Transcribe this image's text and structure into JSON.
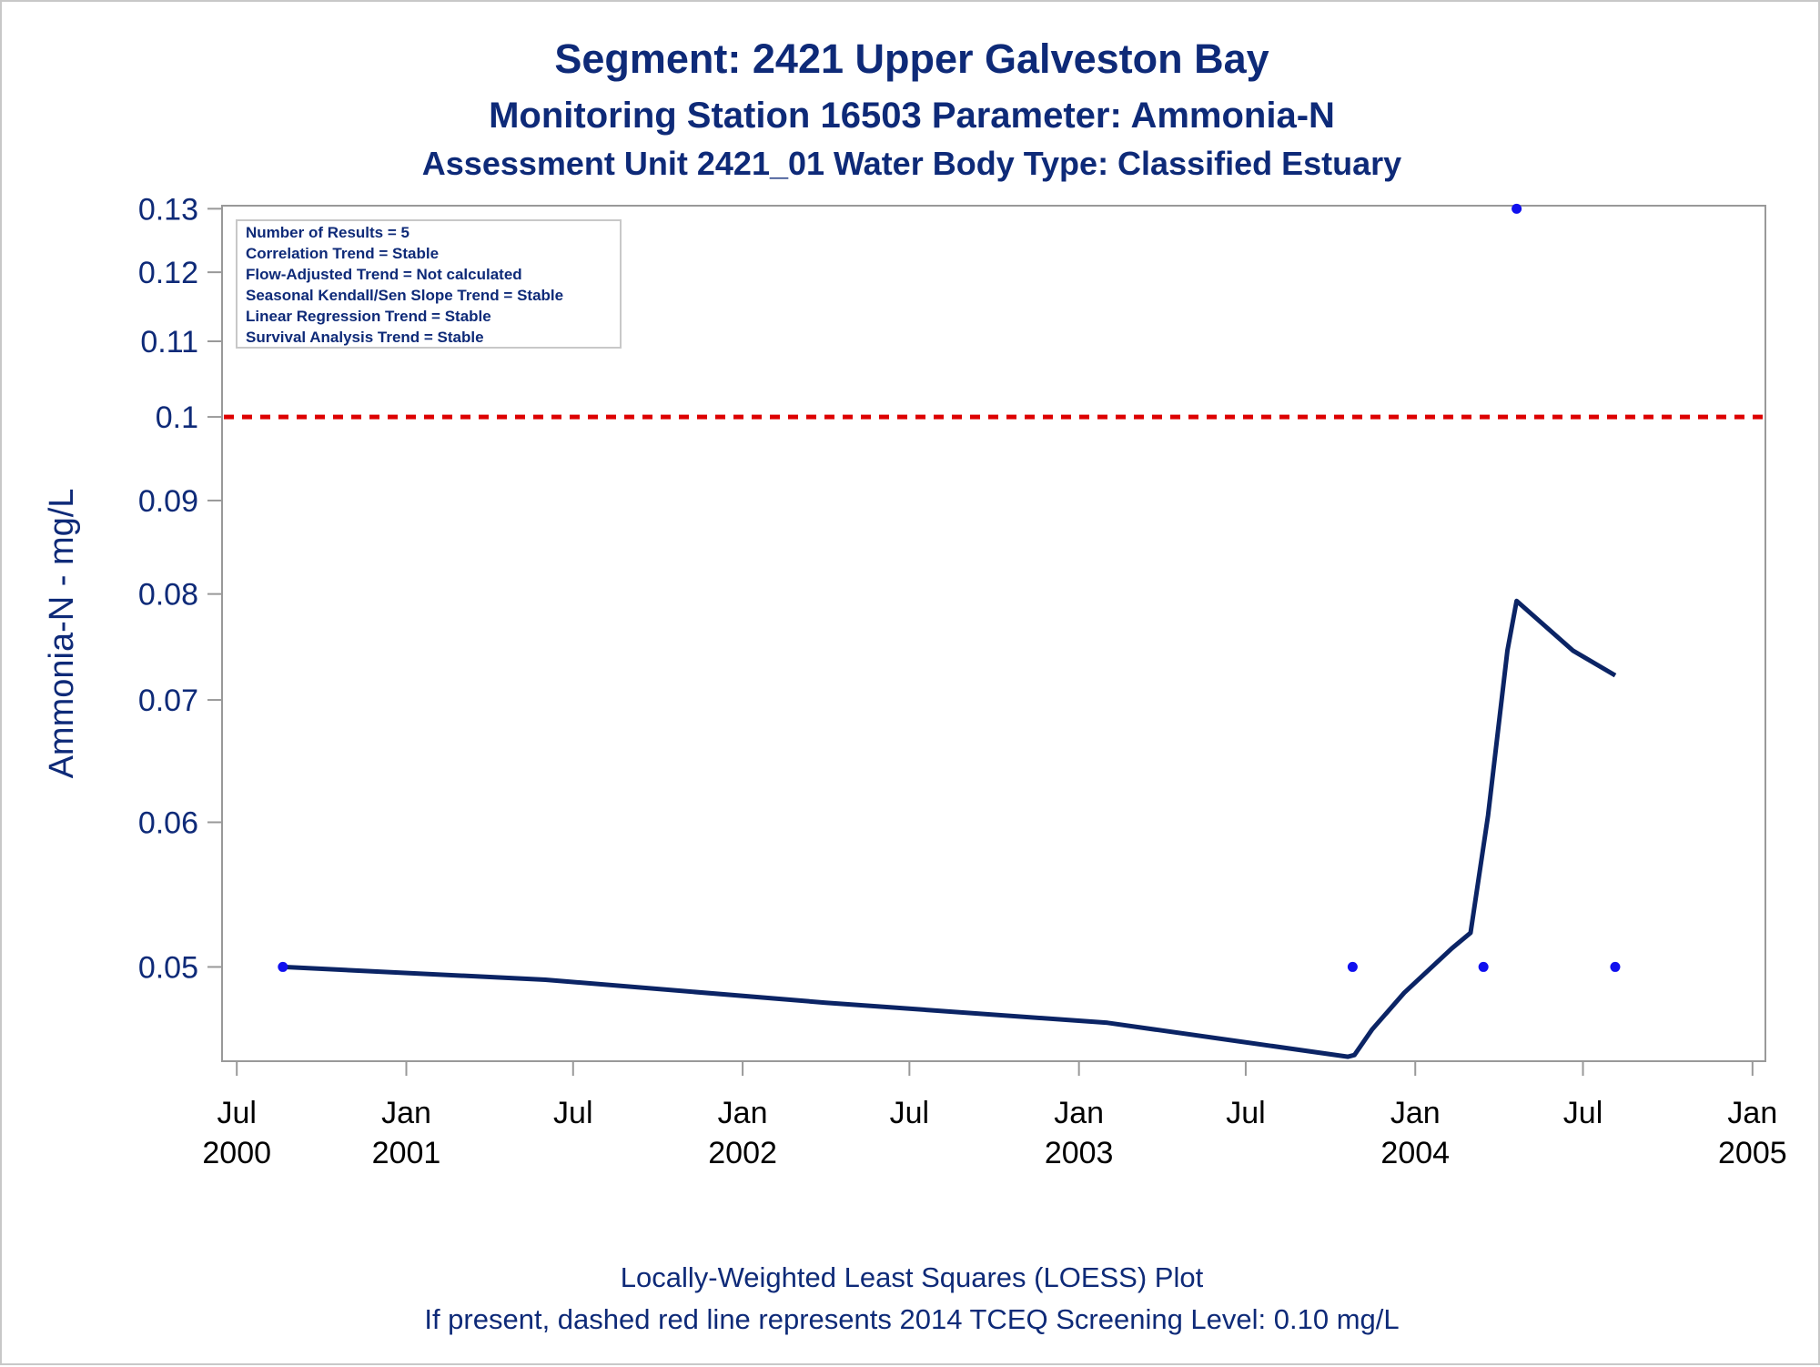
{
  "titles": {
    "line1": "Segment: 2421  Upper Galveston Bay",
    "line2": "Monitoring Station 16503 Parameter: Ammonia-N",
    "line3": "Assessment Unit 2421_01   Water Body Type: Classified Estuary"
  },
  "stats_box": [
    "Number of Results = 5",
    "Correlation Trend = Stable",
    "Flow-Adjusted Trend = Not calculated",
    "Seasonal Kendall/Sen Slope Trend = Stable",
    "Linear Regression Trend = Stable",
    "Survival Analysis Trend = Stable"
  ],
  "footnotes": {
    "line1": "Locally-Weighted Least Squares (LOESS) Plot",
    "line2": "If present, dashed red line represents 2014 TCEQ Screening Level: 0.10 mg/L"
  },
  "colors": {
    "title": "#0e2a78",
    "loess_line": "#0b2465",
    "points": "#1010ee",
    "screening_line": "#dd0000",
    "axis": "#999999"
  },
  "chart_data": {
    "type": "scatter",
    "ylabel": "Ammonia-N - mg/L",
    "xlabel": "",
    "y_scale": "log",
    "ylim": [
      0.0444,
      0.1305
    ],
    "xlim": [
      "2000-06-15",
      "2005-01-15"
    ],
    "y_ticks": [
      {
        "value": 0.05,
        "label": "0.05"
      },
      {
        "value": 0.06,
        "label": "0.06"
      },
      {
        "value": 0.07,
        "label": "0.07"
      },
      {
        "value": 0.08,
        "label": "0.08"
      },
      {
        "value": 0.09,
        "label": "0.09"
      },
      {
        "value": 0.1,
        "label": "0.1"
      },
      {
        "value": 0.11,
        "label": "0.11"
      },
      {
        "value": 0.12,
        "label": "0.12"
      },
      {
        "value": 0.13,
        "label": "0.13"
      }
    ],
    "x_ticks": [
      {
        "date": "2000-07-01",
        "month": "Jul",
        "year": "2000"
      },
      {
        "date": "2001-01-01",
        "month": "Jan",
        "year": "2001"
      },
      {
        "date": "2001-07-01",
        "month": "Jul",
        "year": ""
      },
      {
        "date": "2002-01-01",
        "month": "Jan",
        "year": "2002"
      },
      {
        "date": "2002-07-01",
        "month": "Jul",
        "year": ""
      },
      {
        "date": "2003-01-01",
        "month": "Jan",
        "year": "2003"
      },
      {
        "date": "2003-07-01",
        "month": "Jul",
        "year": ""
      },
      {
        "date": "2004-01-01",
        "month": "Jan",
        "year": "2004"
      },
      {
        "date": "2004-07-01",
        "month": "Jul",
        "year": ""
      },
      {
        "date": "2005-01-01",
        "month": "Jan",
        "year": "2005"
      }
    ],
    "points": [
      {
        "date": "2000-08-20",
        "value": 0.05
      },
      {
        "date": "2003-10-25",
        "value": 0.05
      },
      {
        "date": "2004-03-15",
        "value": 0.05
      },
      {
        "date": "2004-04-20",
        "value": 0.13
      },
      {
        "date": "2004-08-05",
        "value": 0.05
      }
    ],
    "loess_line": [
      {
        "date": "2000-08-20",
        "value": 0.05
      },
      {
        "date": "2001-06-01",
        "value": 0.0492
      },
      {
        "date": "2002-04-01",
        "value": 0.0478
      },
      {
        "date": "2003-02-01",
        "value": 0.0466
      },
      {
        "date": "2003-10-20",
        "value": 0.04465
      },
      {
        "date": "2003-10-27",
        "value": 0.04475
      },
      {
        "date": "2003-11-15",
        "value": 0.0462
      },
      {
        "date": "2003-12-20",
        "value": 0.0484
      },
      {
        "date": "2004-02-10",
        "value": 0.0512
      },
      {
        "date": "2004-03-01",
        "value": 0.0522
      },
      {
        "date": "2004-03-20",
        "value": 0.0605
      },
      {
        "date": "2004-04-10",
        "value": 0.0745
      },
      {
        "date": "2004-04-20",
        "value": 0.0793
      },
      {
        "date": "2004-06-20",
        "value": 0.0745
      },
      {
        "date": "2004-08-05",
        "value": 0.0722
      }
    ],
    "reference_line": {
      "value": 0.1,
      "style": "dashed"
    }
  }
}
